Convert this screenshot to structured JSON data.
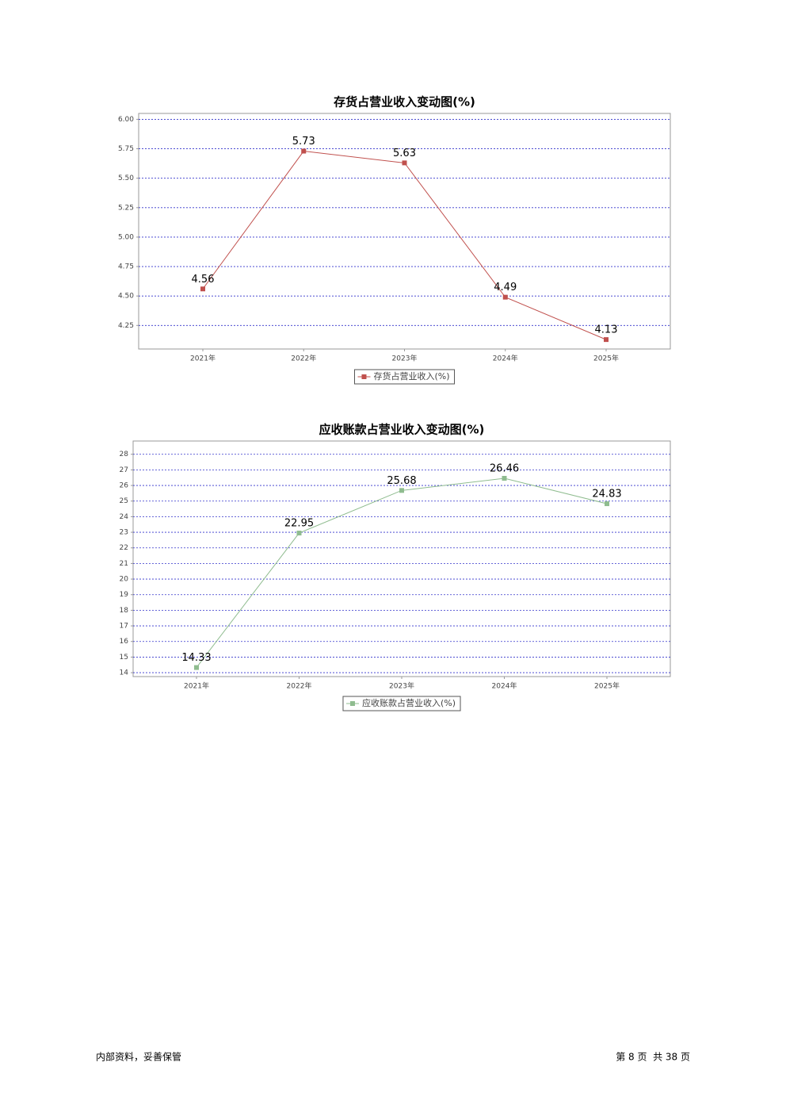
{
  "chart_data": [
    {
      "type": "line",
      "title": "存货占营业收入变动图(%)",
      "categories": [
        "2021年",
        "2022年",
        "2023年",
        "2024年",
        "2025年"
      ],
      "series": [
        {
          "name": "存货占营业收入(%)",
          "color": "#c0504d",
          "values": [
            4.56,
            5.73,
            5.63,
            4.49,
            4.13
          ]
        }
      ],
      "ylim": [
        4.05,
        6.05
      ],
      "yticks": [
        4.25,
        {
          "value": 4.5,
          "label": "4.50"
        },
        4.75,
        {
          "value": 5,
          "label": "5.00"
        },
        5.25,
        {
          "value": 5.5,
          "label": "5.50"
        },
        5.75,
        {
          "value": 6,
          "label": "6.00"
        }
      ],
      "grid": true,
      "legend": "bottom"
    },
    {
      "type": "line",
      "title": "应收账款占营业收入变动图(%)",
      "categories": [
        "2021年",
        "2022年",
        "2023年",
        "2024年",
        "2025年"
      ],
      "series": [
        {
          "name": "应收账款占营业收入(%)",
          "color": "#8fbc8f",
          "values": [
            14.33,
            22.95,
            25.68,
            26.46,
            24.83
          ]
        }
      ],
      "ylim": [
        13.75,
        28.85
      ],
      "yticks": [
        14,
        15,
        16,
        17,
        18,
        19,
        20,
        21,
        22,
        23,
        24,
        25,
        26,
        27,
        28
      ],
      "grid": true,
      "legend": "bottom"
    }
  ],
  "footer": {
    "left": "内部资料，妥善保管",
    "right": "第 8 页  共 38 页"
  }
}
